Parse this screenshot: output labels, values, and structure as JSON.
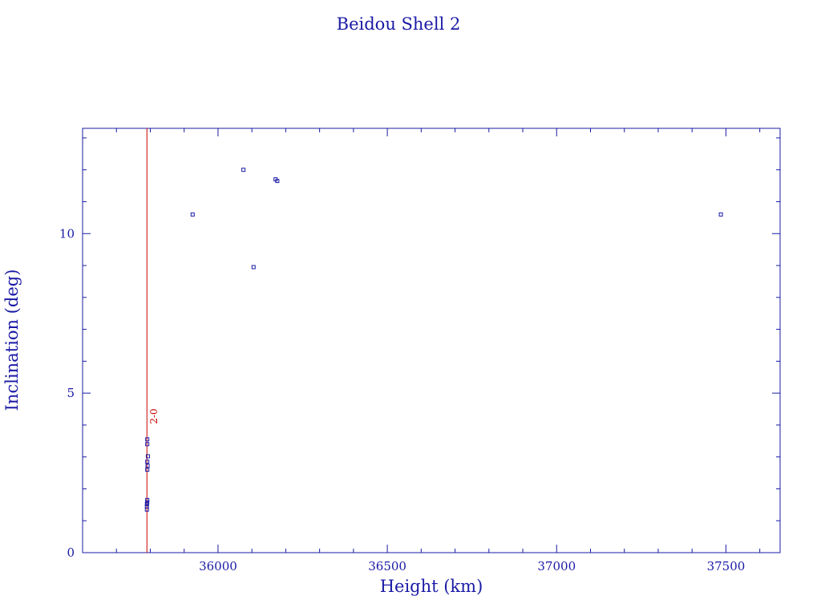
{
  "chart_data": {
    "type": "scatter",
    "title": "Beidou Shell 2",
    "xlabel": "Height (km)",
    "ylabel": "Inclination (deg)",
    "xlim": [
      35600,
      37660
    ],
    "ylim": [
      0,
      13.3
    ],
    "xticks": [
      36000,
      36500,
      37000,
      37500
    ],
    "yticks": [
      0,
      5,
      10
    ],
    "x_minor_step": 100,
    "y_minor_step": 1,
    "grid": false,
    "points": [
      {
        "x": 35790,
        "y": 1.35
      },
      {
        "x": 35790,
        "y": 1.45
      },
      {
        "x": 35790,
        "y": 1.52
      },
      {
        "x": 35791,
        "y": 1.58
      },
      {
        "x": 35791,
        "y": 1.65
      },
      {
        "x": 35791,
        "y": 2.6
      },
      {
        "x": 35792,
        "y": 2.72
      },
      {
        "x": 35791,
        "y": 2.85
      },
      {
        "x": 35793,
        "y": 3.02
      },
      {
        "x": 35791,
        "y": 3.4
      },
      {
        "x": 35791,
        "y": 3.55
      },
      {
        "x": 35925,
        "y": 10.6
      },
      {
        "x": 36075,
        "y": 12.0
      },
      {
        "x": 36105,
        "y": 8.95
      },
      {
        "x": 36170,
        "y": 11.7
      },
      {
        "x": 36175,
        "y": 11.65
      },
      {
        "x": 37485,
        "y": 10.6
      }
    ],
    "reference_line": {
      "x": 35790,
      "label": "2-0"
    },
    "colors": {
      "axes": "#1a1aa6",
      "points": "#1a1aa6",
      "reference_line": "#cc0000"
    }
  }
}
